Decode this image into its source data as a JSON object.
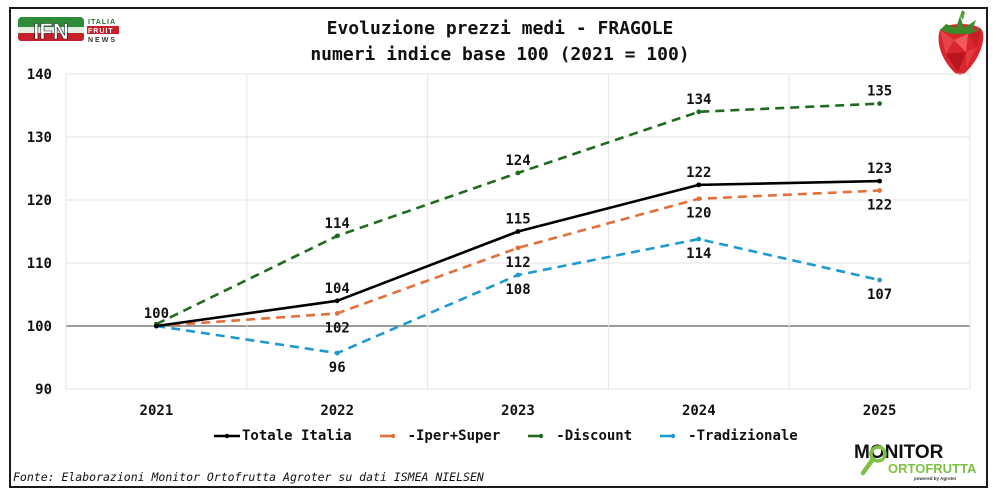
{
  "branding": {
    "left_logo": {
      "main": "IFN",
      "line1": "ITALIA",
      "line2": "FRUIT",
      "line3": "NEWS"
    },
    "right_logo_top": "strawberry",
    "bottom_logo": {
      "line1": "MONITOR",
      "line2": "ORTOFRUTTA",
      "tagline": "powered by Agroter"
    }
  },
  "footer": {
    "source": "Fonte: Elaborazioni Monitor Ortofrutta Agroter su dati ISMEA NIELSEN"
  },
  "chart_data": {
    "type": "line",
    "title": "Evoluzione prezzi medi - FRAGOLE",
    "subtitle": "numeri indice base 100 (2021 = 100)",
    "xlabel": "",
    "ylabel": "",
    "categories": [
      "2021",
      "2022",
      "2023",
      "2024",
      "2025"
    ],
    "ylim": [
      90,
      140
    ],
    "yticks": [
      90,
      100,
      110,
      120,
      130,
      140
    ],
    "ytick_labels": [
      "90",
      "100",
      "110",
      "120",
      "130",
      "140"
    ],
    "grid": true,
    "baseline": 100,
    "legend_position": "bottom",
    "series": [
      {
        "name": "Totale Italia",
        "legend_label": "Totale Italia",
        "color": "#000000",
        "dash": "solid",
        "values": [
          100,
          104,
          115,
          122.4,
          123
        ],
        "labels": [
          "100",
          "104",
          "115",
          "122",
          "123"
        ],
        "label_pos": [
          "above",
          "above",
          "above",
          "above",
          "above"
        ]
      },
      {
        "name": "Iper+Super",
        "legend_label": "-Iper+Super",
        "color": "#E2703A",
        "dash": "dashed",
        "values": [
          100,
          102,
          112.4,
          120.2,
          121.5
        ],
        "labels": [
          "",
          "102",
          "112",
          "120",
          "122"
        ],
        "label_pos": [
          "below",
          "below",
          "below",
          "below",
          "below"
        ]
      },
      {
        "name": "Discount",
        "legend_label": "-Discount",
        "color": "#1E6B1E",
        "dash": "dashed",
        "values": [
          100.3,
          114.3,
          124.3,
          134,
          135.3
        ],
        "labels": [
          "",
          "114",
          "124",
          "134",
          "135"
        ],
        "label_pos": [
          "above",
          "above",
          "above",
          "above",
          "above"
        ]
      },
      {
        "name": "Tradizionale",
        "legend_label": "-Tradizionale",
        "color": "#1E9AD0",
        "dash": "dashed",
        "values": [
          100,
          95.7,
          108.1,
          113.8,
          107.3
        ],
        "labels": [
          "",
          "96",
          "108",
          "114",
          "107"
        ],
        "label_pos": [
          "below",
          "below",
          "below",
          "below",
          "below"
        ]
      }
    ]
  }
}
